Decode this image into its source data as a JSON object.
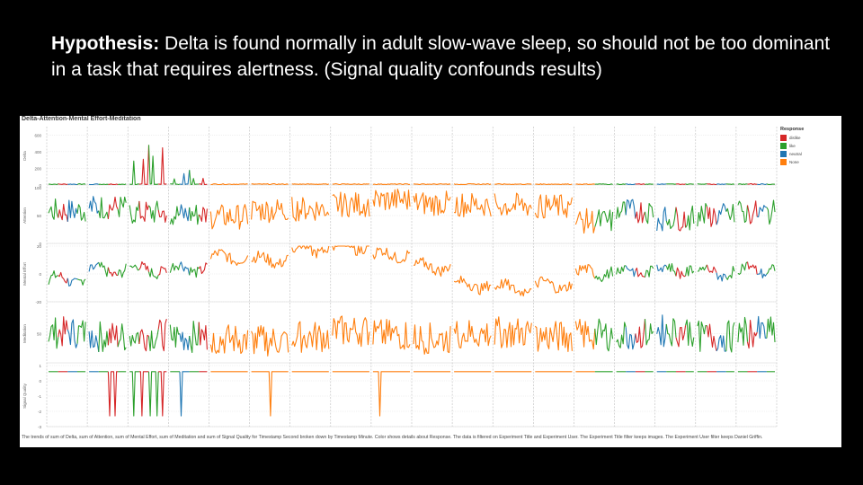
{
  "slide": {
    "title_bold": "Hypothesis:",
    "title_rest": " Delta is found normally in adult slow-wave sleep, so should not be too dominant in a task that requires alertness. (Signal quality confounds results)"
  },
  "figure": {
    "title": "Delta-Attention-Mental Effort-Meditation",
    "caption": "The trends of sum of Delta, sum of Attention, sum of Mental Effort, sum of Meditation and sum of Signal Quality for Timestamp Second broken down by Timestamp Minute. Color shows details about Response. The data is filtered on Experiment Title and Experiment User. The Experiment Title filter keeps images. The Experiment User filter keeps Daniel Griffin.",
    "legend_title": "Response"
  },
  "chart_data": {
    "type": "line",
    "panels_count": 18,
    "legend": [
      {
        "name": "dislike",
        "color": "#d62728"
      },
      {
        "name": "like",
        "color": "#2ca02c"
      },
      {
        "name": "neutral",
        "color": "#1f77b4"
      },
      {
        "name": "None",
        "color": "#ff7f0e"
      }
    ],
    "rows": [
      {
        "label": "Delta",
        "ylim": [
          0,
          700
        ],
        "ticks": [
          0,
          200,
          400,
          600
        ],
        "tick_labels": [
          "0",
          "200",
          "400",
          "600"
        ]
      },
      {
        "label": "Attention",
        "ylim": [
          0,
          100
        ],
        "ticks": [
          0,
          50,
          100
        ],
        "tick_labels": [
          "0",
          "50",
          "100"
        ]
      },
      {
        "label": "Mental Effort",
        "ylim": [
          -20,
          20
        ],
        "ticks": [
          -20,
          0,
          20
        ],
        "tick_labels": [
          "-20",
          "0",
          "20"
        ]
      },
      {
        "label": "Meditation",
        "ylim": [
          0,
          100
        ],
        "ticks": [
          50
        ],
        "tick_labels": [
          "50"
        ]
      },
      {
        "label": "Signal Quality",
        "ylim": [
          -3,
          1
        ],
        "ticks": [
          -3,
          -2,
          -1,
          0,
          1
        ],
        "tick_labels": [
          "-3",
          "-2",
          "-1",
          "0",
          "1"
        ]
      }
    ],
    "panels": [
      {
        "colors": [
          "green",
          "red",
          "blue",
          "green"
        ],
        "delta": 15,
        "att": 58,
        "eff": -4,
        "med": 52,
        "drops": []
      },
      {
        "colors": [
          "blue",
          "green",
          "red",
          "green"
        ],
        "delta": 15,
        "att": 65,
        "eff": 2,
        "med": 45,
        "drops": [
          0.55,
          0.7
        ]
      },
      {
        "colors": [
          "green",
          "red",
          "green",
          "red"
        ],
        "delta": 480,
        "att": 55,
        "eff": 3,
        "med": 48,
        "drops": [
          0.1,
          0.35,
          0.55,
          0.75,
          0.9
        ]
      },
      {
        "colors": [
          "green",
          "blue",
          "green",
          "red"
        ],
        "delta": 180,
        "att": 52,
        "eff": 4,
        "med": 45,
        "drops": [
          0.3
        ]
      },
      {
        "colors": [
          "orange"
        ],
        "delta": 5,
        "att": 48,
        "eff": 12,
        "med": 40,
        "drops": []
      },
      {
        "colors": [
          "orange"
        ],
        "delta": 5,
        "att": 60,
        "eff": 10,
        "med": 38,
        "drops": [
          0.5
        ]
      },
      {
        "colors": [
          "orange"
        ],
        "delta": 8,
        "att": 62,
        "eff": 18,
        "med": 45,
        "drops": []
      },
      {
        "colors": [
          "orange"
        ],
        "delta": 5,
        "att": 70,
        "eff": 20,
        "med": 55,
        "drops": []
      },
      {
        "colors": [
          "orange"
        ],
        "delta": 12,
        "att": 78,
        "eff": 14,
        "med": 48,
        "drops": [
          0.2
        ]
      },
      {
        "colors": [
          "orange"
        ],
        "delta": 6,
        "att": 72,
        "eff": 5,
        "med": 42,
        "drops": []
      },
      {
        "colors": [
          "orange"
        ],
        "delta": 5,
        "att": 70,
        "eff": -8,
        "med": 50,
        "drops": []
      },
      {
        "colors": [
          "orange"
        ],
        "delta": 4,
        "att": 68,
        "eff": -10,
        "med": 52,
        "drops": []
      },
      {
        "colors": [
          "orange"
        ],
        "delta": 5,
        "att": 66,
        "eff": -8,
        "med": 45,
        "drops": []
      },
      {
        "colors": [
          "orange",
          "green"
        ],
        "delta": 6,
        "att": 40,
        "eff": 1,
        "med": 48,
        "drops": []
      },
      {
        "colors": [
          "green",
          "blue",
          "red",
          "green"
        ],
        "delta": 5,
        "att": 58,
        "eff": 2,
        "med": 50,
        "drops": []
      },
      {
        "colors": [
          "blue",
          "green",
          "red",
          "green"
        ],
        "delta": 5,
        "att": 45,
        "eff": 3,
        "med": 55,
        "drops": []
      },
      {
        "colors": [
          "green",
          "red",
          "blue",
          "green"
        ],
        "delta": 5,
        "att": 50,
        "eff": 1,
        "med": 45,
        "drops": []
      },
      {
        "colors": [
          "green",
          "red",
          "blue",
          "green"
        ],
        "delta": 40,
        "att": 55,
        "eff": 3,
        "med": 52,
        "drops": []
      }
    ]
  }
}
